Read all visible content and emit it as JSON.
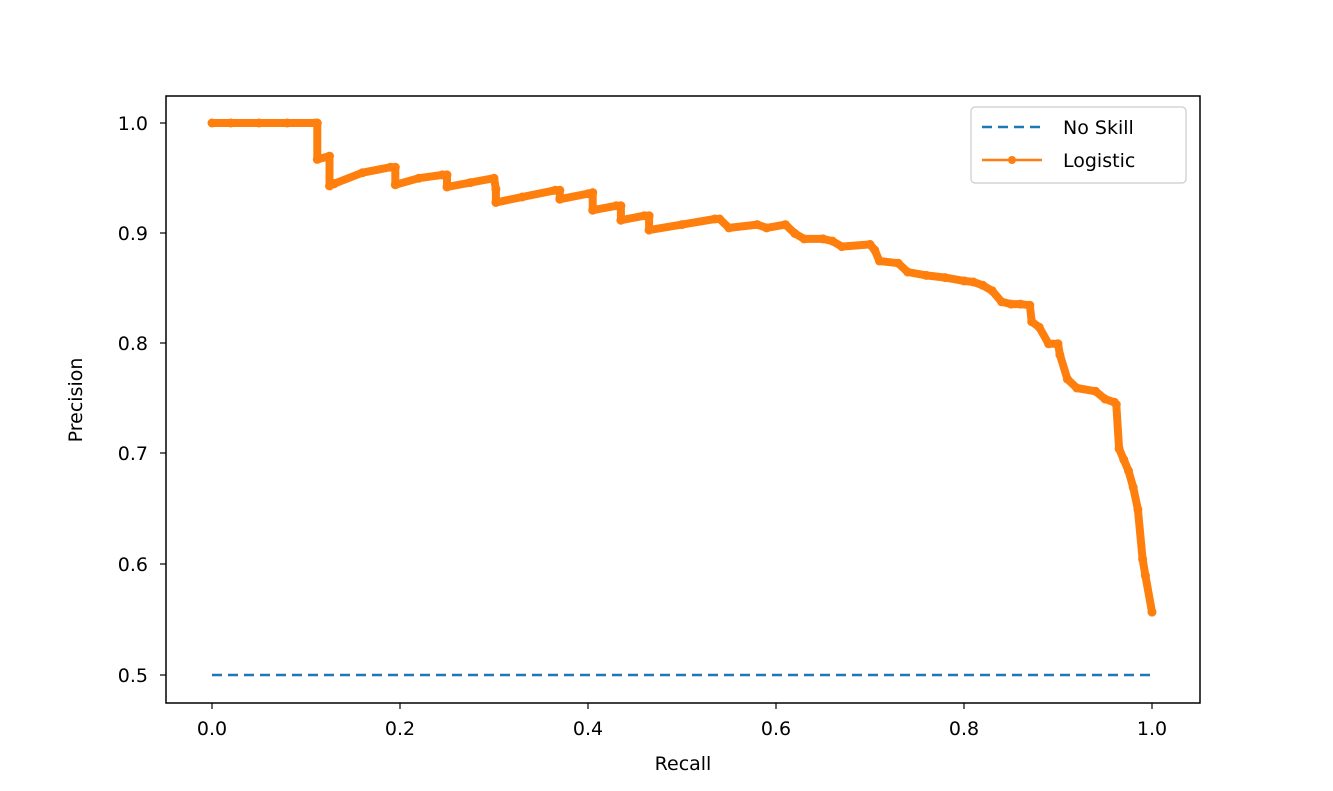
{
  "chart_data": {
    "type": "line",
    "title": "",
    "xlabel": "Recall",
    "ylabel": "Precision",
    "xlim": [
      -0.05,
      1.05
    ],
    "ylim": [
      0.476,
      1.025
    ],
    "grid": false,
    "legend_position": "upper right",
    "x_ticks": [
      0.0,
      0.2,
      0.4,
      0.6,
      0.8,
      1.0
    ],
    "x_tick_labels": [
      "0.0",
      "0.2",
      "0.4",
      "0.6",
      "0.8",
      "1.0"
    ],
    "y_ticks": [
      0.5,
      0.6,
      0.7,
      0.8,
      0.9,
      1.0
    ],
    "y_tick_labels": [
      "0.5",
      "0.6",
      "0.7",
      "0.8",
      "0.9",
      "1.0"
    ],
    "series": [
      {
        "name": "No Skill",
        "style": "dashed",
        "color": "#1f77b4",
        "x": [
          0.0,
          1.0
        ],
        "y": [
          0.5,
          0.5
        ]
      },
      {
        "name": "Logistic",
        "style": "solid-with-markers",
        "color": "#ff7f0e",
        "x": [
          0.0,
          0.02,
          0.05,
          0.08,
          0.11,
          0.112,
          0.112,
          0.125,
          0.125,
          0.13,
          0.13,
          0.16,
          0.19,
          0.195,
          0.195,
          0.22,
          0.245,
          0.25,
          0.25,
          0.275,
          0.3,
          0.302,
          0.302,
          0.33,
          0.365,
          0.37,
          0.37,
          0.4,
          0.405,
          0.405,
          0.43,
          0.435,
          0.435,
          0.46,
          0.465,
          0.465,
          0.5,
          0.535,
          0.54,
          0.55,
          0.58,
          0.59,
          0.61,
          0.62,
          0.63,
          0.65,
          0.66,
          0.67,
          0.7,
          0.705,
          0.71,
          0.73,
          0.74,
          0.76,
          0.78,
          0.8,
          0.81,
          0.82,
          0.83,
          0.84,
          0.85,
          0.86,
          0.87,
          0.872,
          0.88,
          0.89,
          0.9,
          0.902,
          0.91,
          0.92,
          0.94,
          0.95,
          0.96,
          0.962,
          0.965,
          0.97,
          0.975,
          0.98,
          0.985,
          0.99,
          0.993,
          1.0
        ],
        "y": [
          1.0,
          1.0,
          1.0,
          1.0,
          1.0,
          1.0,
          0.967,
          0.97,
          0.943,
          0.945,
          0.945,
          0.955,
          0.96,
          0.96,
          0.944,
          0.95,
          0.953,
          0.953,
          0.942,
          0.946,
          0.95,
          0.94,
          0.928,
          0.933,
          0.939,
          0.939,
          0.931,
          0.936,
          0.937,
          0.921,
          0.925,
          0.925,
          0.912,
          0.916,
          0.916,
          0.903,
          0.908,
          0.913,
          0.913,
          0.905,
          0.908,
          0.905,
          0.908,
          0.9,
          0.895,
          0.895,
          0.893,
          0.888,
          0.89,
          0.885,
          0.875,
          0.873,
          0.865,
          0.862,
          0.86,
          0.857,
          0.856,
          0.853,
          0.848,
          0.838,
          0.836,
          0.836,
          0.835,
          0.82,
          0.815,
          0.8,
          0.8,
          0.79,
          0.768,
          0.76,
          0.757,
          0.75,
          0.747,
          0.745,
          0.705,
          0.695,
          0.685,
          0.67,
          0.65,
          0.605,
          0.59,
          0.557
        ]
      }
    ]
  },
  "legend": {
    "items": [
      {
        "label": "No Skill",
        "color": "#1f77b4"
      },
      {
        "label": "Logistic",
        "color": "#ff7f0e"
      }
    ]
  },
  "axes": {
    "xlabel": "Recall",
    "ylabel": "Precision",
    "x_tick_labels": [
      "0.0",
      "0.2",
      "0.4",
      "0.6",
      "0.8",
      "1.0"
    ],
    "y_tick_labels": [
      "1.0",
      "0.9",
      "0.8",
      "0.7",
      "0.6",
      "0.5"
    ]
  }
}
